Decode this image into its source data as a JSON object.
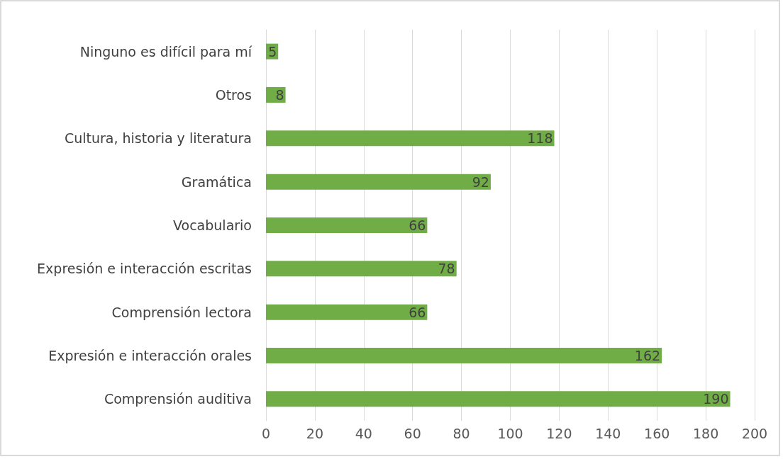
{
  "chart_data": {
    "type": "bar",
    "orientation": "horizontal",
    "categories": [
      "Ninguno es difícil para mí",
      "Otros",
      "Cultura, historia y literatura",
      "Gramática",
      "Vocabulario",
      "Expresión e interacción escritas",
      "Comprensión lectora",
      "Expresión e interacción orales",
      "Comprensión auditiva"
    ],
    "values": [
      5,
      8,
      118,
      92,
      66,
      78,
      66,
      162,
      190
    ],
    "color": "#70ad47",
    "xlim": [
      0,
      200
    ],
    "xticks": [
      0,
      20,
      40,
      60,
      80,
      100,
      120,
      140,
      160,
      180,
      200
    ],
    "grid": "x",
    "data_labels": true
  }
}
